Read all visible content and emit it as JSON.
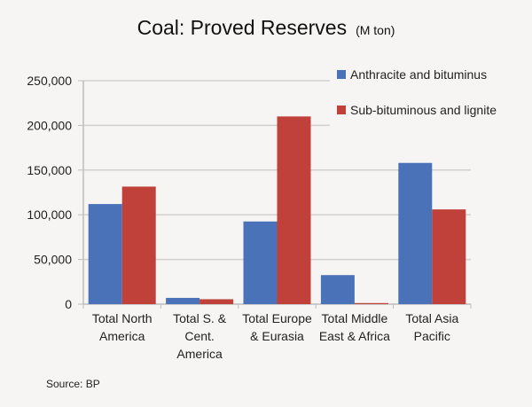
{
  "chart_data": {
    "type": "bar",
    "title": "Coal: Proved Reserves",
    "subtitle": "(M ton)",
    "xlabel": "",
    "ylabel": "",
    "categories": [
      [
        "Total North",
        "America"
      ],
      [
        "Total S. &",
        "Cent.",
        "America"
      ],
      [
        "Total Europe",
        "& Eurasia"
      ],
      [
        "Total Middle",
        "East & Africa"
      ],
      [
        "Total Asia",
        "Pacific"
      ]
    ],
    "series": [
      {
        "name": "Anthracite and bituminus",
        "color": "#4a72b8",
        "values": [
          112000,
          7000,
          92500,
          32500,
          158000
        ]
      },
      {
        "name": "Sub-bituminous and lignite",
        "color": "#c0413a",
        "values": [
          131500,
          5500,
          210000,
          1200,
          106000
        ]
      }
    ],
    "ylim": [
      0,
      250000
    ],
    "yticks": [
      0,
      50000,
      100000,
      150000,
      200000,
      250000
    ],
    "ytick_labels": [
      "0",
      "50,000",
      "100,000",
      "150,000",
      "200,000",
      "250,000"
    ],
    "grid": true,
    "legend_position": "top-right"
  },
  "footer": {
    "source": "Source: BP"
  }
}
